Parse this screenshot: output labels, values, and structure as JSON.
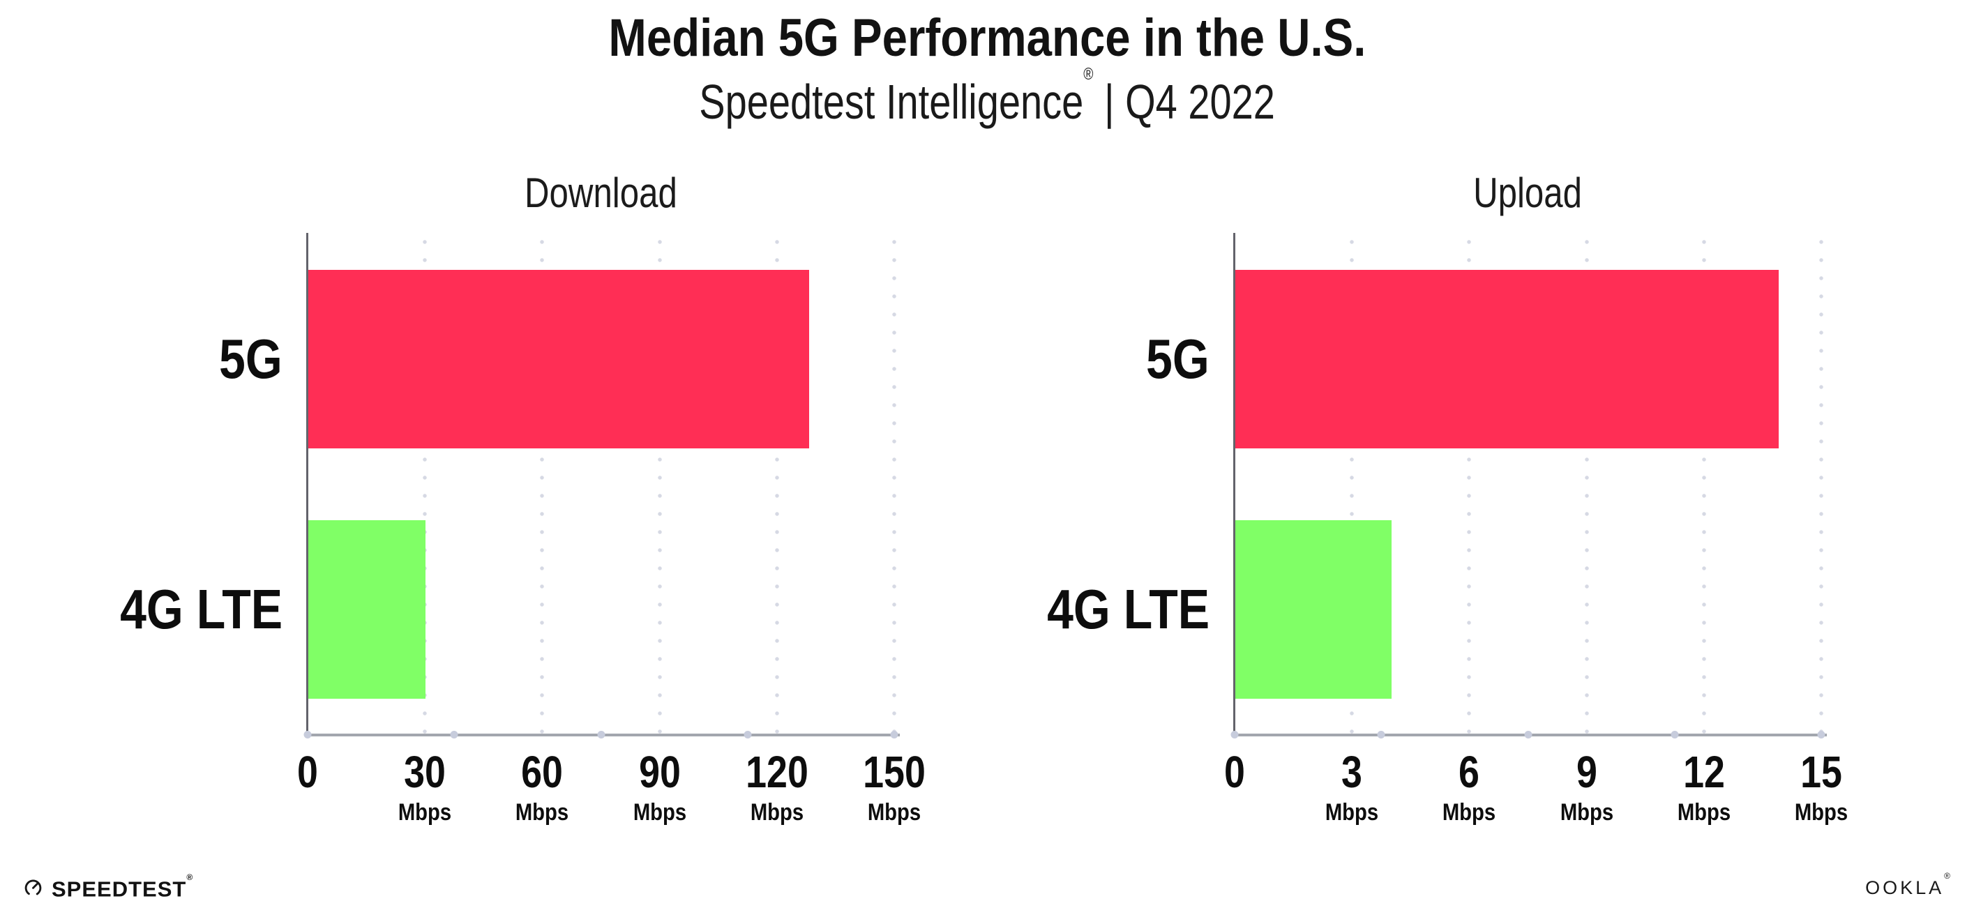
{
  "header": {
    "title": "Median 5G Performance in the U.S.",
    "subtitle_brand": "Speedtest Intelligence",
    "subtitle_reg": "®",
    "subtitle_rest": " | Q4 2022"
  },
  "colors": {
    "bar_5g": "#FF2E55",
    "bar_4g_lte": "#80FF66",
    "y_axis": "#63636B",
    "x_axis": "#A3A6AE",
    "gridline_dots": "#D6D9E4",
    "axis_tick_dots": "#C7CCDC",
    "text": "#121212"
  },
  "chart_data": [
    {
      "type": "bar",
      "orientation": "horizontal",
      "title": "Download",
      "categories": [
        "5G",
        "4G LTE"
      ],
      "values": [
        128,
        30
      ],
      "unit": "Mbps",
      "xlim": [
        0,
        150
      ],
      "xticks": [
        0,
        30,
        60,
        90,
        120,
        150
      ],
      "bar_colors": [
        "#FF2E55",
        "#80FF66"
      ],
      "grid": "dotted-vertical",
      "legend": "none"
    },
    {
      "type": "bar",
      "orientation": "horizontal",
      "title": "Upload",
      "categories": [
        "5G",
        "4G LTE"
      ],
      "values": [
        13.9,
        4
      ],
      "unit": "Mbps",
      "xlim": [
        0,
        15
      ],
      "xticks": [
        0,
        3,
        6,
        9,
        12,
        15
      ],
      "bar_colors": [
        "#FF2E55",
        "#80FF66"
      ],
      "grid": "dotted-vertical",
      "legend": "none"
    }
  ],
  "footer": {
    "speedtest_label": "SPEEDTEST",
    "speedtest_mark": "®",
    "ookla_label": "OOKLA",
    "ookla_mark": "®"
  }
}
